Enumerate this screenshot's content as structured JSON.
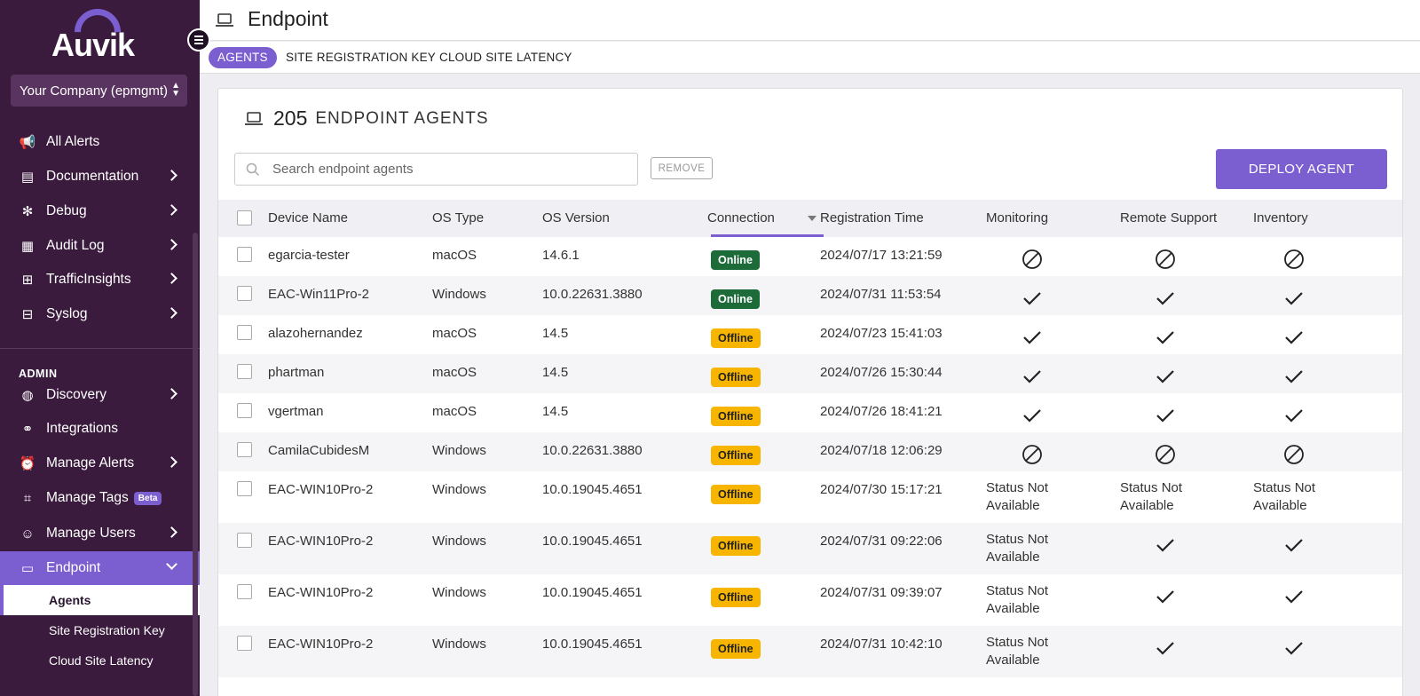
{
  "brand": {
    "name": "Auvik"
  },
  "company_selector": {
    "label": "Your Company (epmgmt)"
  },
  "sidebar": {
    "items": [
      {
        "label": "All Alerts",
        "icon": "megaphone-icon",
        "chevron": false
      },
      {
        "label": "Documentation",
        "icon": "document-icon",
        "chevron": true
      },
      {
        "label": "Debug",
        "icon": "bug-icon",
        "chevron": true
      },
      {
        "label": "Audit Log",
        "icon": "calendar-icon",
        "chevron": true
      },
      {
        "label": "TrafficInsights",
        "icon": "traffic-icon",
        "chevron": true
      },
      {
        "label": "Syslog",
        "icon": "syslog-icon",
        "chevron": true
      }
    ],
    "admin_label": "ADMIN",
    "admin_items": [
      {
        "label": "Discovery",
        "icon": "globe-icon",
        "chevron": true
      },
      {
        "label": "Integrations",
        "icon": "plug-icon",
        "chevron": false
      },
      {
        "label": "Manage Alerts",
        "icon": "alarm-icon",
        "chevron": true
      },
      {
        "label": "Manage Tags",
        "icon": "tag-icon",
        "chevron": false,
        "badge": "Beta"
      },
      {
        "label": "Manage Users",
        "icon": "users-icon",
        "chevron": true
      },
      {
        "label": "Endpoint",
        "icon": "laptop-icon",
        "chevron": true,
        "active": true
      }
    ],
    "sub_items": [
      {
        "label": "Agents",
        "current": true
      },
      {
        "label": "Site Registration Key"
      },
      {
        "label": "Cloud Site Latency"
      }
    ]
  },
  "header": {
    "title": "Endpoint"
  },
  "tabs": [
    {
      "label": "AGENTS",
      "active": true
    },
    {
      "label": "SITE REGISTRATION KEY"
    },
    {
      "label": "CLOUD SITE LATENCY"
    }
  ],
  "card": {
    "count": "205",
    "title": "ENDPOINT AGENTS",
    "search_placeholder": "Search endpoint agents",
    "remove_label": "REMOVE",
    "deploy_label": "DEPLOY AGENT"
  },
  "table": {
    "columns": [
      "Device Name",
      "OS Type",
      "OS Version",
      "Connection",
      "Registration Time",
      "Monitoring",
      "Remote Support",
      "Inventory"
    ],
    "sorted_by": "Connection",
    "rows": [
      {
        "device": "egarcia-tester",
        "os": "macOS",
        "version": "14.6.1",
        "connection": "Online",
        "time": "2024/07/17 13:21:59",
        "monitoring": "disabled",
        "remote": "disabled",
        "inventory": "disabled"
      },
      {
        "device": "EAC-Win11Pro-2",
        "os": "Windows",
        "version": "10.0.22631.3880",
        "connection": "Online",
        "time": "2024/07/31 11:53:54",
        "monitoring": "check",
        "remote": "check",
        "inventory": "check"
      },
      {
        "device": "alazohernandez",
        "os": "macOS",
        "version": "14.5",
        "connection": "Offline",
        "time": "2024/07/23 15:41:03",
        "monitoring": "check",
        "remote": "check",
        "inventory": "check"
      },
      {
        "device": "phartman",
        "os": "macOS",
        "version": "14.5",
        "connection": "Offline",
        "time": "2024/07/26 15:30:44",
        "monitoring": "check",
        "remote": "check",
        "inventory": "check"
      },
      {
        "device": "vgertman",
        "os": "macOS",
        "version": "14.5",
        "connection": "Offline",
        "time": "2024/07/26 18:41:21",
        "monitoring": "check",
        "remote": "check",
        "inventory": "check"
      },
      {
        "device": "CamilaCubidesM",
        "os": "Windows",
        "version": "10.0.22631.3880",
        "connection": "Offline",
        "time": "2024/07/18 12:06:29",
        "monitoring": "disabled",
        "remote": "disabled",
        "inventory": "disabled"
      },
      {
        "device": "EAC-WIN10Pro-2",
        "os": "Windows",
        "version": "10.0.19045.4651",
        "connection": "Offline",
        "time": "2024/07/30 15:17:21",
        "monitoring": "Status Not Available",
        "remote": "Status Not Available",
        "inventory": "Status Not Available"
      },
      {
        "device": "EAC-WIN10Pro-2",
        "os": "Windows",
        "version": "10.0.19045.4651",
        "connection": "Offline",
        "time": "2024/07/31 09:22:06",
        "monitoring": "Status Not Available",
        "remote": "check",
        "inventory": "check"
      },
      {
        "device": "EAC-WIN10Pro-2",
        "os": "Windows",
        "version": "10.0.19045.4651",
        "connection": "Offline",
        "time": "2024/07/31 09:39:07",
        "monitoring": "Status Not Available",
        "remote": "check",
        "inventory": "check"
      },
      {
        "device": "EAC-WIN10Pro-2",
        "os": "Windows",
        "version": "10.0.19045.4651",
        "connection": "Offline",
        "time": "2024/07/31 10:42:10",
        "monitoring": "Status Not Available",
        "remote": "check",
        "inventory": "check"
      }
    ]
  },
  "colors": {
    "sidebar_bg": "#3a1a3d",
    "accent": "#7b5fd0",
    "online": "#1e6b3a",
    "offline": "#f7b500"
  }
}
